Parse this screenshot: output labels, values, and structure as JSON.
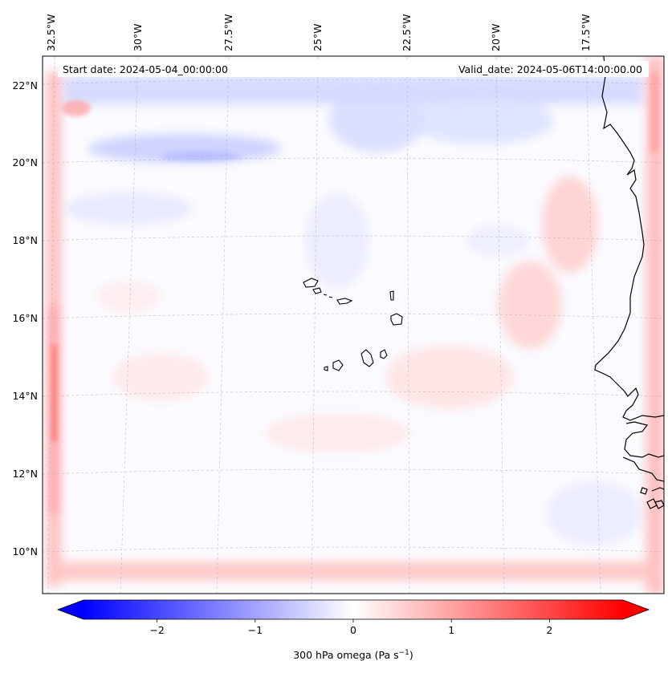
{
  "chart_data": {
    "type": "heatmap",
    "start_date_label": "Start date: 2024-05-04_00:00:00",
    "valid_date_label": "Valid_date: 2024-05-06T14:00:00.00",
    "lon_labels": [
      "32.5°W",
      "30°W",
      "27.5°W",
      "25°W",
      "22.5°W",
      "20°W",
      "17.5°W"
    ],
    "lat_labels": [
      "22°N",
      "20°N",
      "18°N",
      "16°N",
      "14°N",
      "12°N",
      "10°N"
    ],
    "colorbar": {
      "label": "300 hPa omega (Pa s",
      "label_exponent": "−1",
      "label_close": ")",
      "ticks": [
        "−2",
        "−1",
        "0",
        "1",
        "2"
      ],
      "tick_values": [
        -2,
        -1,
        0,
        1,
        2
      ],
      "range": [
        -2.75,
        2.75
      ],
      "colors": {
        "min": "#0000ff",
        "mid": "#ffffff",
        "max": "#ff0000"
      },
      "extend": "both"
    },
    "features": [
      "coastline-africa",
      "cape-verde-islands"
    ],
    "field_description_values": {
      "typical_min": -0.8,
      "typical_max": 0.9
    }
  }
}
